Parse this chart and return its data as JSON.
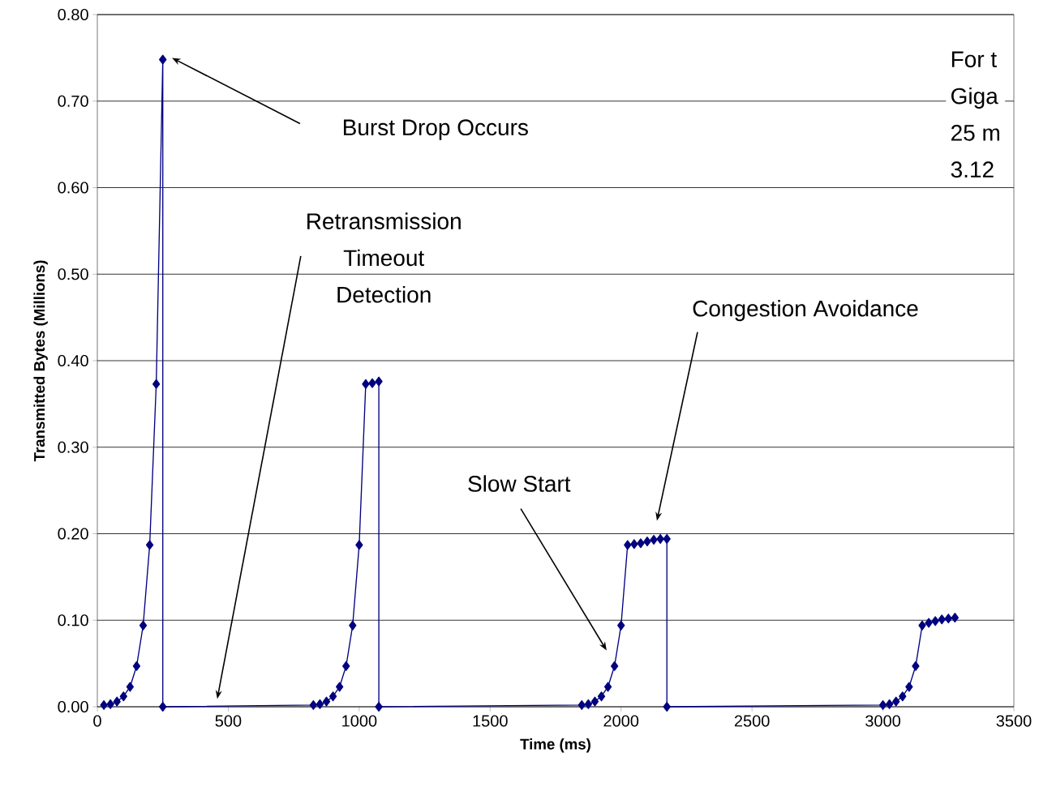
{
  "chart_data": {
    "type": "line",
    "xlabel": "Time (ms)",
    "ylabel": "Transmitted Bytes (Millions)",
    "series": [
      {
        "color": "#000080",
        "x": [
          25,
          50,
          75,
          100,
          125,
          150,
          175,
          200,
          225,
          250,
          250,
          825,
          850,
          875,
          900,
          925,
          950,
          975,
          1000,
          1025,
          1050,
          1075,
          1075,
          1850,
          1875,
          1900,
          1925,
          1950,
          1975,
          2000,
          2025,
          2050,
          2075,
          2100,
          2125,
          2150,
          2175,
          2175,
          3000,
          3025,
          3050,
          3075,
          3100,
          3125,
          3150,
          3175,
          3200,
          3225,
          3250,
          3275
        ],
        "values": [
          0.002,
          0.003,
          0.006,
          0.012,
          0.023,
          0.047,
          0.094,
          0.187,
          0.373,
          0.748,
          0,
          0.002,
          0.003,
          0.006,
          0.012,
          0.023,
          0.047,
          0.094,
          0.187,
          0.373,
          0.374,
          0.376,
          0,
          0.002,
          0.003,
          0.006,
          0.012,
          0.023,
          0.047,
          0.094,
          0.187,
          0.188,
          0.189,
          0.191,
          0.193,
          0.194,
          0.194,
          0,
          0.002,
          0.003,
          0.006,
          0.012,
          0.023,
          0.047,
          0.094,
          0.097,
          0.099,
          0.101,
          0.102,
          0.103
        ]
      }
    ],
    "xlim": [
      0,
      3500
    ],
    "xticks": [
      0,
      500,
      1000,
      1500,
      2000,
      2500,
      3000,
      3500
    ],
    "ylim": [
      0,
      0.8
    ],
    "yticks": [
      {
        "value": 0,
        "label": "0.00"
      },
      {
        "value": 0.1,
        "label": "0.10"
      },
      {
        "value": 0.2,
        "label": "0.20"
      },
      {
        "value": 0.3,
        "label": "0.30"
      },
      {
        "value": 0.4,
        "label": "0.40"
      },
      {
        "value": 0.5,
        "label": "0.50"
      },
      {
        "value": 0.6,
        "label": "0.60"
      },
      {
        "value": 0.7,
        "label": "0.70"
      },
      {
        "value": 0.8,
        "label": "0.80"
      }
    ],
    "grid": "y",
    "marker": "diamond",
    "line_style": "solid",
    "annotations": [
      "Burst Drop Occurs",
      "Retransmission Timeout Detection",
      "Slow Start",
      "Congestion Avoidance",
      "For t",
      "Giga",
      "25 m",
      "3.12"
    ]
  }
}
